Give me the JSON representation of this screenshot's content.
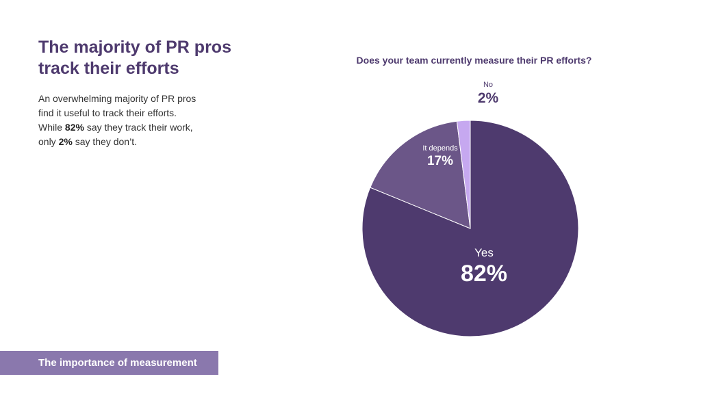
{
  "header": {
    "title_line1": "The majority of PR pros",
    "title_line2": "track their efforts"
  },
  "body": {
    "p1": "An overwhelming majority of PR pros find it useful to track their efforts. While ",
    "highlight1": "82%",
    "p2": " say they track their work, only ",
    "highlight2": "2%",
    "p3": " say they don’t."
  },
  "footer": {
    "label": "The importance of measurement"
  },
  "colors": {
    "title": "#4e3a6e",
    "yes": "#4e3a6e",
    "it_depends": "#6b5688",
    "no": "#c6a8f0",
    "footer": "#8a78ad"
  },
  "chart_data": {
    "type": "pie",
    "title": "Does your team currently measure their PR efforts?",
    "slices": [
      {
        "label": "Yes",
        "value": 82,
        "display": "82%",
        "color": "#4e3a6e"
      },
      {
        "label": "It depends",
        "value": 17,
        "display": "17%",
        "color": "#6b5688"
      },
      {
        "label": "No",
        "value": 2,
        "display": "2%",
        "color": "#c6a8f0"
      }
    ],
    "start": "12 o'clock",
    "direction": "clockwise"
  }
}
